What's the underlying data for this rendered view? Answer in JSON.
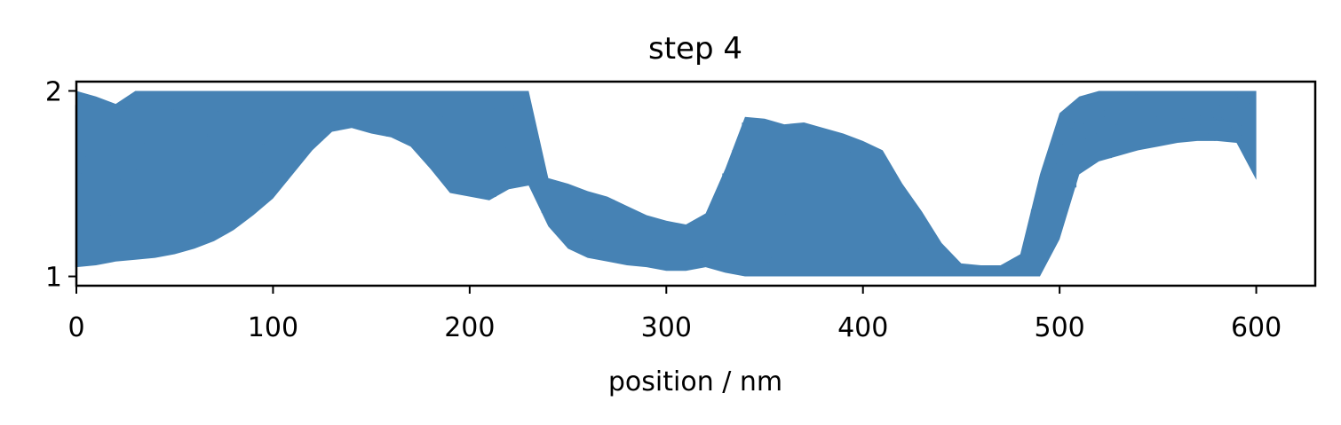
{
  "chart_data": {
    "type": "area",
    "title": "step 4",
    "xlabel": "position / nm",
    "ylabel": "",
    "xlim": [
      0,
      630
    ],
    "ylim": [
      0.95,
      2.05
    ],
    "xticks": [
      0,
      100,
      200,
      300,
      400,
      500,
      600
    ],
    "xtick_labels": [
      "0",
      "100",
      "200",
      "300",
      "400",
      "500",
      "600"
    ],
    "yticks": [
      1,
      2
    ],
    "ytick_labels": [
      "1",
      "2"
    ],
    "grid": false,
    "legend": "none",
    "color": "#4682b4",
    "series": [
      {
        "x": [
          0,
          10,
          20,
          30,
          40,
          50,
          60,
          70,
          80,
          90,
          100,
          110,
          120,
          130,
          140,
          150,
          160,
          170,
          180,
          190,
          200,
          210,
          220,
          230,
          240,
          250,
          260,
          270,
          280,
          290,
          300,
          310,
          320,
          330,
          340,
          350,
          360,
          370,
          380,
          390,
          400,
          410,
          420,
          430,
          440,
          450,
          460,
          470,
          480,
          490,
          500,
          510,
          520,
          530,
          540,
          550,
          560,
          570,
          580,
          590,
          600
        ],
        "upper": [
          2.0,
          1.97,
          1.93,
          2.0,
          2.0,
          2.0,
          2.0,
          2.0,
          2.0,
          2.0,
          2.0,
          2.0,
          2.0,
          2.0,
          2.0,
          2.0,
          2.0,
          2.0,
          2.0,
          2.0,
          2.0,
          2.0,
          2.0,
          2.0,
          1.53,
          1.5,
          1.46,
          1.43,
          1.38,
          1.33,
          1.3,
          1.28,
          1.34,
          1.58,
          1.86,
          1.85,
          1.82,
          1.83,
          1.8,
          1.77,
          1.73,
          1.68,
          1.5,
          1.35,
          1.18,
          1.07,
          1.06,
          1.06,
          1.12,
          1.55,
          1.88,
          1.97,
          2.0,
          2.0,
          2.0,
          2.0,
          2.0,
          2.0,
          2.0,
          2.0,
          2.0
        ],
        "lower": [
          1.05,
          1.06,
          1.08,
          1.09,
          1.1,
          1.12,
          1.15,
          1.19,
          1.25,
          1.33,
          1.42,
          1.55,
          1.68,
          1.78,
          1.8,
          1.77,
          1.75,
          1.7,
          1.58,
          1.45,
          1.43,
          1.41,
          1.47,
          1.49,
          1.27,
          1.15,
          1.1,
          1.08,
          1.06,
          1.05,
          1.03,
          1.03,
          1.05,
          1.02,
          1.0,
          1.0,
          1.0,
          1.0,
          1.0,
          1.0,
          1.0,
          1.0,
          1.0,
          1.0,
          1.0,
          1.0,
          1.0,
          1.0,
          1.0,
          1.0,
          1.2,
          1.55,
          1.62,
          1.65,
          1.68,
          1.7,
          1.72,
          1.73,
          1.73,
          1.72,
          1.52
        ]
      }
    ]
  }
}
